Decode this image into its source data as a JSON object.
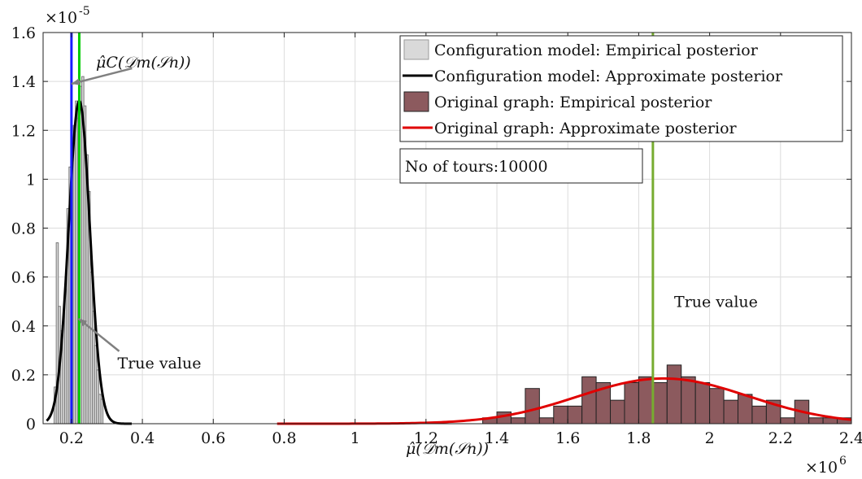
{
  "chart_data": {
    "type": "bar",
    "xlabel": "μ̂(𝒟m(𝒮n))",
    "ylabel": "",
    "x_exponent_label": "×10",
    "x_exponent_power": "6",
    "y_exponent_label": "×10",
    "y_exponent_power": "-5",
    "xlim": [
      0.12,
      2.4
    ],
    "ylim": [
      0,
      1.6
    ],
    "x_ticks": [
      "0.2",
      "0.4",
      "0.6",
      "0.8",
      "1",
      "1.2",
      "1.4",
      "1.6",
      "1.8",
      "2",
      "2.2",
      "2.4"
    ],
    "x_tick_values": [
      0.2,
      0.4,
      0.6,
      0.8,
      1.0,
      1.2,
      1.4,
      1.6,
      1.8,
      2.0,
      2.2,
      2.4
    ],
    "y_ticks": [
      "0",
      "0.2",
      "0.4",
      "0.6",
      "0.8",
      "1",
      "1.2",
      "1.4",
      "1.6"
    ],
    "y_tick_values": [
      0,
      0.2,
      0.4,
      0.6,
      0.8,
      1.0,
      1.2,
      1.4,
      1.6
    ],
    "grid": true,
    "legend_placement": "top-right",
    "legend": [
      {
        "label": "Configuration model: Empirical posterior",
        "kind": "patch",
        "color": "#d9d9d9"
      },
      {
        "label": "Configuration model: Approximate posterior",
        "kind": "line",
        "color": "#000000"
      },
      {
        "label": "Original graph: Empirical posterior",
        "kind": "patch",
        "color": "#8c5a5e"
      },
      {
        "label": "Original graph: Approximate posterior",
        "kind": "line",
        "color": "#e00000"
      }
    ],
    "info_box": "No of tours:10000",
    "annotations": [
      {
        "id": "mu-c-label",
        "text": "μ̂C(𝒟m(𝒮n))",
        "color": "#1a1aff",
        "x": 0.38,
        "y": 1.48,
        "arrow_to": [
          0.2,
          1.39
        ]
      },
      {
        "id": "true-value-left",
        "text": "True value",
        "color": "#22dd22",
        "x": 0.33,
        "y": 0.25,
        "arrow_to": [
          0.22,
          0.43
        ]
      },
      {
        "id": "true-value-right",
        "text": "True value",
        "color": "#77ac30",
        "x": 1.9,
        "y": 0.5
      }
    ],
    "series": [
      {
        "name": "Configuration model: Empirical posterior",
        "kind": "histogram",
        "color": "#d9d9d9",
        "bin_width": 0.006,
        "x": [
          0.154,
          0.16,
          0.166,
          0.172,
          0.178,
          0.184,
          0.19,
          0.196,
          0.202,
          0.208,
          0.214,
          0.22,
          0.226,
          0.232,
          0.238,
          0.244,
          0.25,
          0.256,
          0.262,
          0.268,
          0.274,
          0.28,
          0.286
        ],
        "values": [
          0.15,
          0.74,
          0.48,
          0.38,
          0.42,
          0.55,
          0.88,
          1.05,
          1.12,
          1.22,
          1.32,
          1.25,
          1.38,
          1.42,
          1.3,
          1.1,
          0.95,
          0.62,
          0.46,
          0.32,
          0.22,
          0.12,
          0.1
        ]
      },
      {
        "name": "Configuration model: Approximate posterior",
        "kind": "gaussian",
        "color": "#000000",
        "mean": 0.222,
        "sd": 0.03,
        "peak": 1.32,
        "x_range": [
          0.13,
          0.37
        ]
      },
      {
        "name": "Original graph: Empirical posterior",
        "kind": "histogram",
        "color": "#8c5a5e",
        "bin_width": 0.04,
        "x": [
          1.38,
          1.42,
          1.46,
          1.5,
          1.54,
          1.58,
          1.62,
          1.66,
          1.7,
          1.74,
          1.78,
          1.82,
          1.86,
          1.9,
          1.94,
          1.98,
          2.02,
          2.06,
          2.1,
          2.14,
          2.18,
          2.22,
          2.26,
          2.3,
          2.34,
          2.38
        ],
        "values": [
          0.024,
          0.048,
          0.024,
          0.144,
          0.024,
          0.072,
          0.072,
          0.192,
          0.168,
          0.096,
          0.168,
          0.192,
          0.168,
          0.24,
          0.192,
          0.168,
          0.144,
          0.096,
          0.12,
          0.072,
          0.096,
          0.024,
          0.096,
          0.024,
          0.024,
          0.024
        ]
      },
      {
        "name": "Original graph: Approximate posterior",
        "kind": "gaussian",
        "color": "#e00000",
        "mean": 1.87,
        "sd": 0.24,
        "peak": 0.185,
        "x_range": [
          0.78,
          2.4
        ]
      }
    ],
    "vertical_lines": [
      {
        "x": 0.2,
        "color": "#1a1aff"
      },
      {
        "x": 0.222,
        "color": "#00cc00"
      },
      {
        "x": 1.84,
        "color": "#77ac30"
      }
    ]
  }
}
